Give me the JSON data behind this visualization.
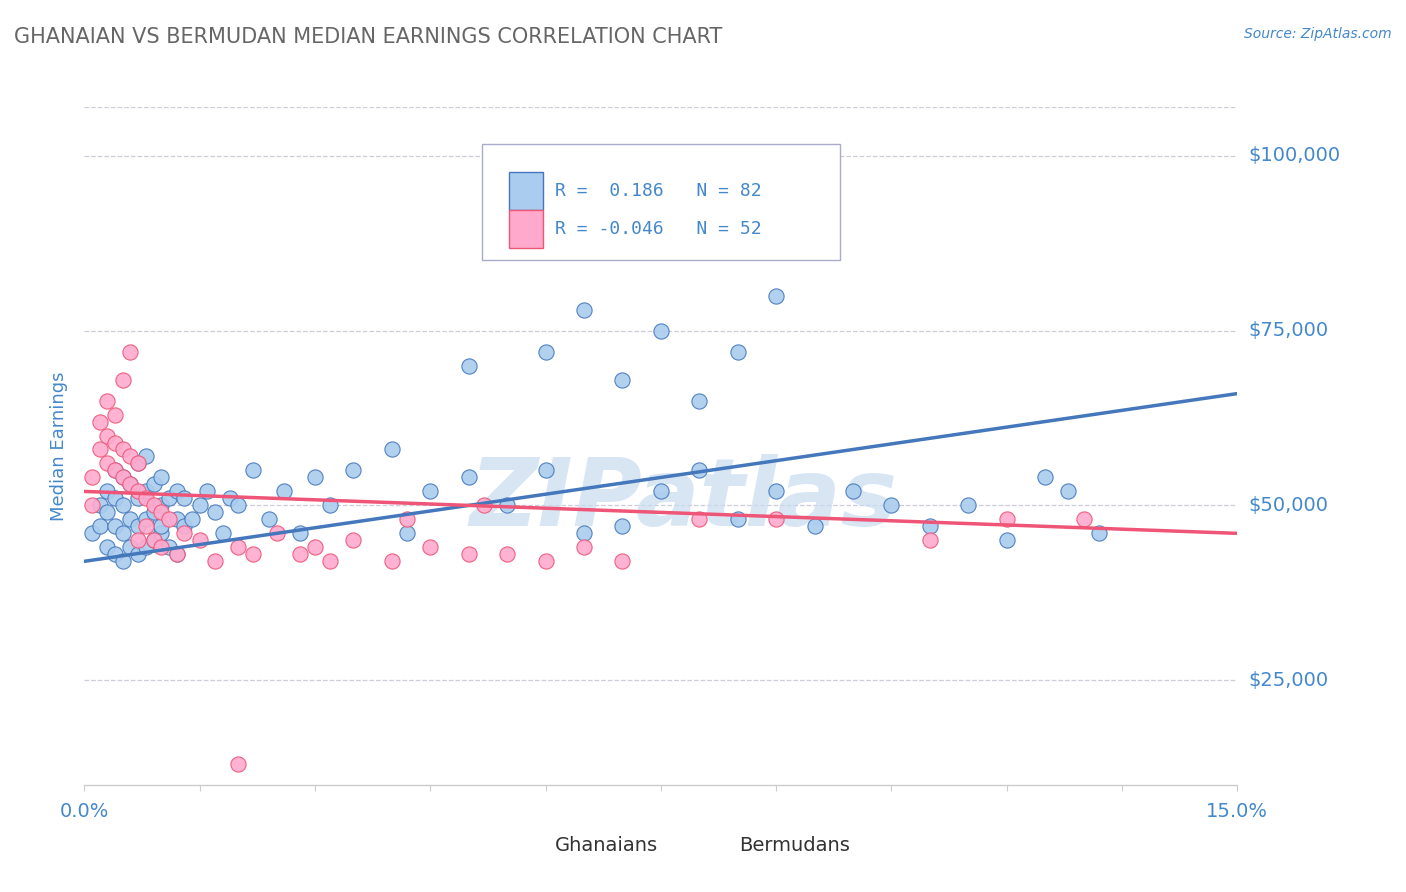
{
  "title": "GHANAIAN VS BERMUDAN MEDIAN EARNINGS CORRELATION CHART",
  "source_text": "Source: ZipAtlas.com",
  "ylabel": "Median Earnings",
  "xlim": [
    0.0,
    0.15
  ],
  "ylim": [
    10000,
    107000
  ],
  "yticks": [
    25000,
    50000,
    75000,
    100000
  ],
  "ytick_labels": [
    "$25,000",
    "$50,000",
    "$75,000",
    "$100,000"
  ],
  "xtick_values": [
    0.0,
    0.015,
    0.03,
    0.045,
    0.06,
    0.075,
    0.09,
    0.105,
    0.12,
    0.135,
    0.15
  ],
  "blue_color": "#4477BB",
  "pink_color": "#EE5577",
  "blue_fill": "#AACCEE",
  "pink_fill": "#FFAACC",
  "legend_r_blue": "0.186",
  "legend_n_blue": "82",
  "legend_r_pink": "-0.046",
  "legend_n_pink": "52",
  "legend_label_blue": "Ghanaians",
  "legend_label_pink": "Bermudans",
  "watermark": "ZIPatlas",
  "watermark_color": "#C8DCF0",
  "title_color": "#666666",
  "axis_label_color": "#4488CC",
  "grid_color": "#CCCCDD",
  "background_color": "#FFFFFF",
  "blue_trend_x": [
    0.0,
    0.15
  ],
  "blue_trend_y": [
    42000,
    66000
  ],
  "pink_trend_x": [
    0.0,
    0.15
  ],
  "pink_trend_y": [
    52000,
    46000
  ],
  "blue_points_x": [
    0.001,
    0.002,
    0.002,
    0.003,
    0.003,
    0.003,
    0.004,
    0.004,
    0.004,
    0.004,
    0.005,
    0.005,
    0.005,
    0.005,
    0.006,
    0.006,
    0.006,
    0.007,
    0.007,
    0.007,
    0.007,
    0.008,
    0.008,
    0.008,
    0.008,
    0.009,
    0.009,
    0.009,
    0.01,
    0.01,
    0.01,
    0.01,
    0.011,
    0.011,
    0.012,
    0.012,
    0.012,
    0.013,
    0.013,
    0.014,
    0.015,
    0.016,
    0.017,
    0.018,
    0.019,
    0.02,
    0.022,
    0.024,
    0.026,
    0.028,
    0.03,
    0.032,
    0.035,
    0.04,
    0.042,
    0.045,
    0.05,
    0.055,
    0.06,
    0.065,
    0.07,
    0.075,
    0.08,
    0.085,
    0.09,
    0.095,
    0.1,
    0.105,
    0.11,
    0.115,
    0.12,
    0.125,
    0.128,
    0.132,
    0.05,
    0.06,
    0.065,
    0.07,
    0.075,
    0.08,
    0.085,
    0.09
  ],
  "blue_points_y": [
    46000,
    47000,
    50000,
    44000,
    49000,
    52000,
    43000,
    47000,
    51000,
    55000,
    42000,
    46000,
    50000,
    54000,
    44000,
    48000,
    53000,
    43000,
    47000,
    51000,
    56000,
    44000,
    48000,
    52000,
    57000,
    45000,
    49000,
    53000,
    46000,
    50000,
    54000,
    47000,
    51000,
    44000,
    48000,
    52000,
    43000,
    47000,
    51000,
    48000,
    50000,
    52000,
    49000,
    46000,
    51000,
    50000,
    55000,
    48000,
    52000,
    46000,
    54000,
    50000,
    55000,
    58000,
    46000,
    52000,
    54000,
    50000,
    55000,
    46000,
    47000,
    52000,
    55000,
    48000,
    52000,
    47000,
    52000,
    50000,
    47000,
    50000,
    45000,
    54000,
    52000,
    46000,
    70000,
    72000,
    78000,
    68000,
    75000,
    65000,
    72000,
    80000
  ],
  "pink_points_x": [
    0.001,
    0.001,
    0.002,
    0.002,
    0.003,
    0.003,
    0.003,
    0.004,
    0.004,
    0.004,
    0.005,
    0.005,
    0.005,
    0.006,
    0.006,
    0.006,
    0.007,
    0.007,
    0.007,
    0.008,
    0.008,
    0.009,
    0.009,
    0.01,
    0.01,
    0.011,
    0.012,
    0.013,
    0.015,
    0.017,
    0.02,
    0.022,
    0.025,
    0.028,
    0.03,
    0.032,
    0.035,
    0.04,
    0.042,
    0.045,
    0.05,
    0.052,
    0.055,
    0.06,
    0.065,
    0.07,
    0.08,
    0.09,
    0.11,
    0.12,
    0.13,
    0.02
  ],
  "pink_points_y": [
    50000,
    54000,
    58000,
    62000,
    56000,
    60000,
    65000,
    55000,
    59000,
    63000,
    54000,
    58000,
    68000,
    53000,
    57000,
    72000,
    52000,
    56000,
    45000,
    51000,
    47000,
    50000,
    45000,
    49000,
    44000,
    48000,
    43000,
    46000,
    45000,
    42000,
    44000,
    43000,
    46000,
    43000,
    44000,
    42000,
    45000,
    42000,
    48000,
    44000,
    43000,
    50000,
    43000,
    42000,
    44000,
    42000,
    48000,
    48000,
    45000,
    48000,
    48000,
    13000
  ]
}
